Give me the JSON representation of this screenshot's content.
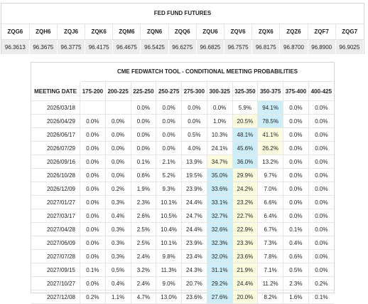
{
  "futures": {
    "title": "FED FUND FUTURES",
    "contracts": [
      {
        "code": "ZQG6",
        "price": "96.3613"
      },
      {
        "code": "ZQH6",
        "price": "96.3675"
      },
      {
        "code": "ZQJ6",
        "price": "96.3775"
      },
      {
        "code": "ZQK6",
        "price": "96.4175"
      },
      {
        "code": "ZQM6",
        "price": "96.4675"
      },
      {
        "code": "ZQN6",
        "price": "96.5425"
      },
      {
        "code": "ZQQ6",
        "price": "96.6275"
      },
      {
        "code": "ZQU6",
        "price": "96.6825"
      },
      {
        "code": "ZQV6",
        "price": "96.7575"
      },
      {
        "code": "ZQX6",
        "price": "96.8175"
      },
      {
        "code": "ZQZ6",
        "price": "96.8700"
      },
      {
        "code": "ZQF7",
        "price": "96.8900"
      },
      {
        "code": "ZQG7",
        "price": "96.9025"
      }
    ]
  },
  "fedwatch": {
    "title": "CME FEDWATCH TOOL - CONDITIONAL MEETING PROBABILITIES",
    "date_header": "MEETING DATE",
    "ranges": [
      "175-200",
      "200-225",
      "225-250",
      "250-275",
      "275-300",
      "300-325",
      "325-350",
      "350-375",
      "375-400",
      "400-425"
    ],
    "highlight_colors": {
      "max": "#cdeef8",
      "second": "#fbfbe0"
    },
    "rows": [
      {
        "date": "2026/03/18",
        "cells": [
          "",
          "",
          "0.0%",
          "0.0%",
          "0.0%",
          "0.0%",
          "5.9%",
          "94.1%",
          "0.0%",
          "0.0%"
        ],
        "hl": [
          null,
          null,
          null,
          null,
          null,
          null,
          null,
          "b",
          null,
          null
        ]
      },
      {
        "date": "2026/04/29",
        "cells": [
          "0.0%",
          "0.0%",
          "0.0%",
          "0.0%",
          "0.0%",
          "1.0%",
          "20.5%",
          "78.5%",
          "0.0%",
          "0.0%"
        ],
        "hl": [
          null,
          null,
          null,
          null,
          null,
          null,
          "y",
          "b",
          null,
          null
        ]
      },
      {
        "date": "2026/06/17",
        "cells": [
          "0.0%",
          "0.0%",
          "0.0%",
          "0.0%",
          "0.5%",
          "10.3%",
          "48.1%",
          "41.1%",
          "0.0%",
          "0.0%"
        ],
        "hl": [
          null,
          null,
          null,
          null,
          null,
          null,
          "b",
          "y",
          null,
          null
        ]
      },
      {
        "date": "2026/07/29",
        "cells": [
          "0.0%",
          "0.0%",
          "0.0%",
          "0.0%",
          "4.0%",
          "24.1%",
          "45.6%",
          "26.2%",
          "0.0%",
          "0.0%"
        ],
        "hl": [
          null,
          null,
          null,
          null,
          null,
          null,
          "b",
          "y",
          null,
          null
        ]
      },
      {
        "date": "2026/09/16",
        "cells": [
          "0.0%",
          "0.0%",
          "0.1%",
          "2.1%",
          "13.9%",
          "34.7%",
          "36.0%",
          "13.2%",
          "0.0%",
          "0.0%"
        ],
        "hl": [
          null,
          null,
          null,
          null,
          null,
          "y",
          "b",
          null,
          null,
          null
        ]
      },
      {
        "date": "2026/10/28",
        "cells": [
          "0.0%",
          "0.0%",
          "0.6%",
          "5.2%",
          "19.5%",
          "35.0%",
          "29.9%",
          "9.7%",
          "0.0%",
          "0.0%"
        ],
        "hl": [
          null,
          null,
          null,
          null,
          null,
          "b",
          "y",
          null,
          null,
          null
        ]
      },
      {
        "date": "2026/12/09",
        "cells": [
          "0.0%",
          "0.2%",
          "1.9%",
          "9.3%",
          "23.9%",
          "33.6%",
          "24.2%",
          "7.0%",
          "0.0%",
          "0.0%"
        ],
        "hl": [
          null,
          null,
          null,
          null,
          null,
          "b",
          "y",
          null,
          null,
          null
        ]
      },
      {
        "date": "2027/01/27",
        "cells": [
          "0.0%",
          "0.3%",
          "2.3%",
          "10.1%",
          "24.4%",
          "33.1%",
          "23.2%",
          "6.6%",
          "0.0%",
          "0.0%"
        ],
        "hl": [
          null,
          null,
          null,
          null,
          null,
          "b",
          "y",
          null,
          null,
          null
        ]
      },
      {
        "date": "2027/03/17",
        "cells": [
          "0.0%",
          "0.4%",
          "2.6%",
          "10.5%",
          "24.7%",
          "32.7%",
          "22.7%",
          "6.4%",
          "0.0%",
          "0.0%"
        ],
        "hl": [
          null,
          null,
          null,
          null,
          null,
          "b",
          "y",
          null,
          null,
          null
        ]
      },
      {
        "date": "2027/04/28",
        "cells": [
          "0.0%",
          "0.3%",
          "2.5%",
          "10.4%",
          "24.4%",
          "32.6%",
          "22.9%",
          "6.7%",
          "0.1%",
          "0.0%"
        ],
        "hl": [
          null,
          null,
          null,
          null,
          null,
          "b",
          "y",
          null,
          null,
          null
        ]
      },
      {
        "date": "2027/06/09",
        "cells": [
          "0.0%",
          "0.3%",
          "2.5%",
          "10.1%",
          "23.9%",
          "32.3%",
          "23.3%",
          "7.3%",
          "0.4%",
          "0.0%"
        ],
        "hl": [
          null,
          null,
          null,
          null,
          null,
          "b",
          "y",
          null,
          null,
          null
        ]
      },
      {
        "date": "2027/07/28",
        "cells": [
          "0.0%",
          "0.3%",
          "2.4%",
          "9.8%",
          "23.4%",
          "32.0%",
          "23.6%",
          "7.8%",
          "0.6%",
          "0.0%"
        ],
        "hl": [
          null,
          null,
          null,
          null,
          null,
          "b",
          "y",
          null,
          null,
          null
        ]
      },
      {
        "date": "2027/09/15",
        "cells": [
          "0.1%",
          "0.5%",
          "3.2%",
          "11.3%",
          "24.3%",
          "31.1%",
          "21.9%",
          "7.1%",
          "0.5%",
          "0.0%"
        ],
        "hl": [
          null,
          null,
          null,
          null,
          null,
          "b",
          "y",
          null,
          null,
          null
        ]
      },
      {
        "date": "2027/10/27",
        "cells": [
          "0.0%",
          "0.4%",
          "2.4%",
          "9.0%",
          "20.7%",
          "29.2%",
          "24.4%",
          "11.2%",
          "2.3%",
          "0.2%"
        ],
        "hl": [
          null,
          null,
          null,
          null,
          null,
          "b",
          "y",
          null,
          null,
          null
        ]
      },
      {
        "date": "2027/12/08",
        "cells": [
          "0.2%",
          "1.1%",
          "4.7%",
          "13.0%",
          "23.6%",
          "27.6%",
          "20.0%",
          "8.2%",
          "1.6%",
          "0.1%"
        ],
        "hl": [
          null,
          null,
          null,
          null,
          null,
          "b",
          "y",
          null,
          null,
          null
        ]
      }
    ]
  }
}
